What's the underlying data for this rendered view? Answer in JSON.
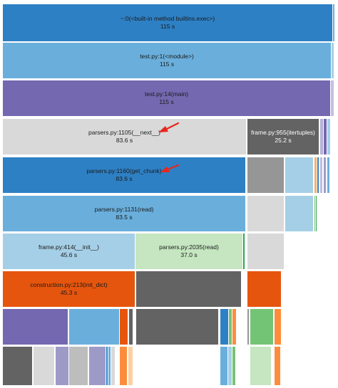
{
  "flamegraph": {
    "frames": [
      {
        "id": "f0",
        "name": "~:0(<built-in method builtins.exec>)",
        "time": "115 s",
        "color": "#2e80c4",
        "light": false
      },
      {
        "id": "f1",
        "name": "test.py:1(<module>)",
        "time": "115 s",
        "color": "#6aafdc",
        "light": false
      },
      {
        "id": "f2",
        "name": "test.py:14(main)",
        "time": "115 s",
        "color": "#7468b0",
        "light": false
      },
      {
        "id": "f3",
        "name": "parsers.py:1105(__next__)",
        "time": "83.6 s",
        "color": "#d9d9d9",
        "light": true
      },
      {
        "id": "f4",
        "name": "frame.py:955(itertuples)",
        "time": "25.2 s",
        "color": "#636363",
        "light": false
      },
      {
        "id": "f5",
        "name": "parsers.py:1160(get_chunk)",
        "time": "83.6 s",
        "color": "#2e80c4",
        "light": false
      },
      {
        "id": "f6",
        "name": "parsers.py:1131(read)",
        "time": "83.5 s",
        "color": "#6aafdc",
        "light": false
      },
      {
        "id": "f7",
        "name": "frame.py:414(__init__)",
        "time": "45.6 s",
        "color": "#a5cfe6",
        "light": true
      },
      {
        "id": "f8",
        "name": "parsers.py:2035(read)",
        "time": "37.0 s",
        "color": "#c5e6c0",
        "light": true
      },
      {
        "id": "f9",
        "name": "construction.py:213(init_dict)",
        "time": "45.3 s",
        "color": "#e6550d",
        "light": false
      }
    ],
    "annotations": [
      {
        "target": "f3",
        "color": "#e8261c"
      },
      {
        "target": "f5",
        "color": "#e8261c"
      }
    ]
  }
}
